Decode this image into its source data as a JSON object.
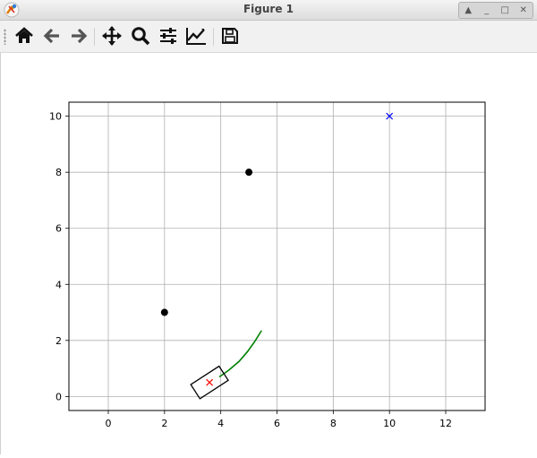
{
  "window": {
    "title": "Figure 1"
  },
  "toolbar": {
    "buttons": [
      {
        "name": "home",
        "icon": "home-icon"
      },
      {
        "name": "back",
        "icon": "arrow-left-icon"
      },
      {
        "name": "forward",
        "icon": "arrow-right-icon"
      },
      {
        "name": "pan",
        "icon": "move-icon"
      },
      {
        "name": "zoom",
        "icon": "magnifier-icon"
      },
      {
        "name": "subplots",
        "icon": "sliders-icon"
      },
      {
        "name": "axes",
        "icon": "line-chart-icon"
      },
      {
        "name": "save",
        "icon": "floppy-icon"
      }
    ]
  },
  "chart_data": {
    "type": "scatter",
    "xlim": [
      -1.4,
      13.4
    ],
    "ylim": [
      -0.5,
      10.5
    ],
    "xticks": [
      0,
      2,
      4,
      6,
      8,
      10,
      12
    ],
    "yticks": [
      0,
      2,
      4,
      6,
      8,
      10
    ],
    "grid": true,
    "obstacles": {
      "color": "#000000",
      "marker": "circle",
      "points": [
        [
          2,
          3
        ],
        [
          5,
          8
        ]
      ]
    },
    "goal": {
      "color": "#0000ff",
      "marker": "x",
      "point": [
        10,
        10
      ]
    },
    "vehicle": {
      "color": "#ff0000",
      "marker": "x",
      "center": [
        3.6,
        0.5
      ],
      "heading_deg": 33,
      "length": 1.2,
      "width": 0.6,
      "outline_color": "#000000"
    },
    "path": {
      "color": "#008000",
      "points": [
        [
          3.95,
          0.7
        ],
        [
          4.3,
          0.95
        ],
        [
          4.65,
          1.25
        ],
        [
          4.95,
          1.6
        ],
        [
          5.2,
          1.95
        ],
        [
          5.45,
          2.35
        ]
      ]
    }
  }
}
